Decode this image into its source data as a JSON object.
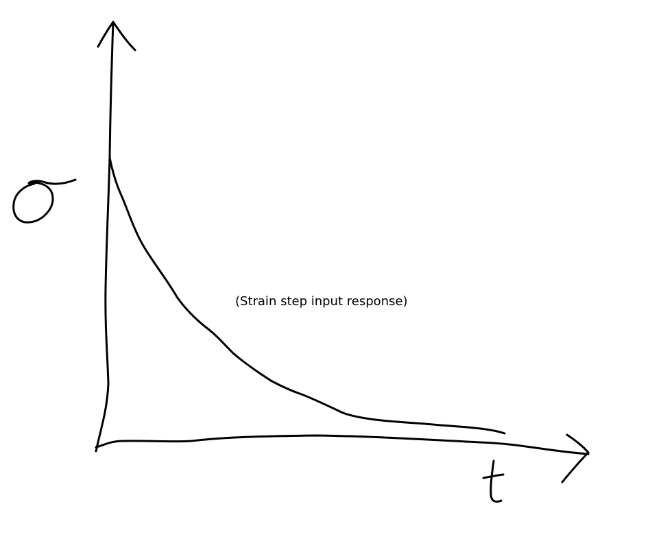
{
  "diagram": {
    "annotation": "(Strain step input response)",
    "y_axis_symbol": "σ",
    "x_axis_symbol": "t",
    "ink_color": "#000000",
    "background_color": "#ffffff"
  }
}
